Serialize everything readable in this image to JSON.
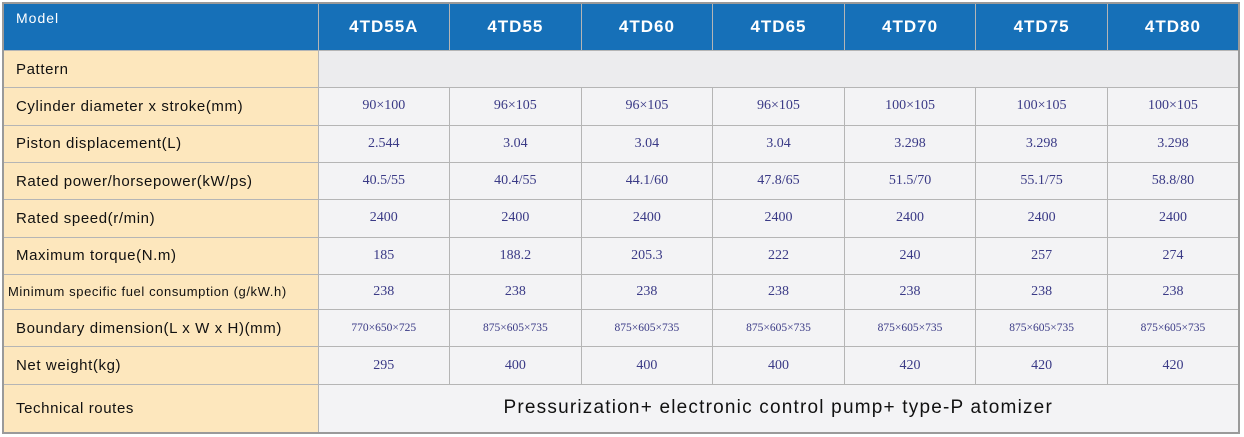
{
  "table": {
    "header": [
      "Model",
      "4TD55A",
      "4TD55",
      "4TD60",
      "4TD65",
      "4TD70",
      "4TD75",
      "4TD80"
    ],
    "rows": [
      [
        "Pattern"
      ],
      [
        "Cylinder diameter x stroke(mm)",
        "90×100",
        "96×105",
        "96×105",
        "96×105",
        "100×105",
        "100×105",
        "100×105"
      ],
      [
        "Piston displacement(L)",
        "2.544",
        "3.04",
        "3.04",
        "3.04",
        "3.298",
        "3.298",
        "3.298"
      ],
      [
        "Rated power/horsepower(kW/ps)",
        "40.5/55",
        "40.4/55",
        "44.1/60",
        "47.8/65",
        "51.5/70",
        "55.1/75",
        "58.8/80"
      ],
      [
        "Rated speed(r/min)",
        "2400",
        "2400",
        "2400",
        "2400",
        "2400",
        "2400",
        "2400"
      ],
      [
        "Maximum torque(N.m)",
        "185",
        "188.2",
        "205.3",
        "222",
        "240",
        "257",
        "274"
      ],
      [
        "Minimum specific fuel consumption (g/kW.h)",
        "238",
        "238",
        "238",
        "238",
        "238",
        "238",
        "238"
      ],
      [
        "Boundary dimension(L x W x H)(mm)",
        "770×650×725",
        "875×605×735",
        "875×605×735",
        "875×605×735",
        "875×605×735",
        "875×605×735",
        "875×605×735"
      ],
      [
        "Net weight(kg)",
        "295",
        "400",
        "400",
        "400",
        "420",
        "420",
        "420"
      ],
      [
        "Technical routes",
        "Pressurization+ electronic control pump+ type-P atomizer"
      ]
    ]
  }
}
